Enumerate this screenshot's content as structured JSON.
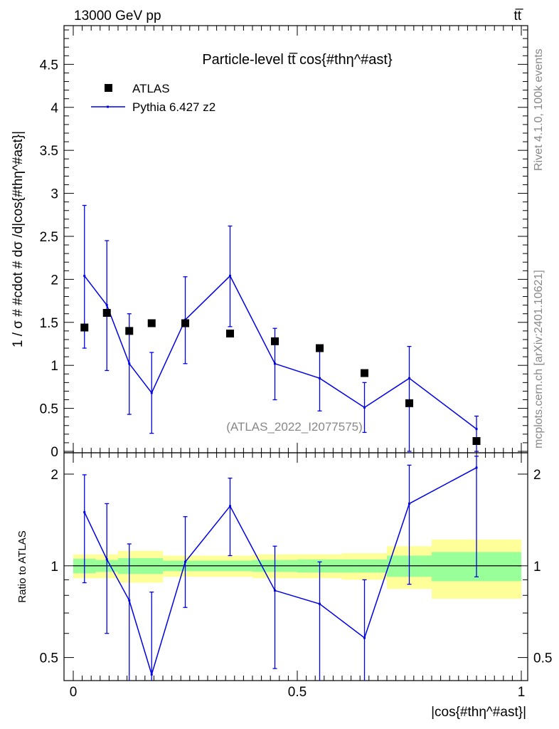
{
  "header": {
    "energy_label": "13000 GeV pp",
    "process_label": "tt̅",
    "title": "Particle-level tt̅ cos{#thη^#ast}",
    "analysis_id": "(ATLAS_2022_I2077575)",
    "rivet_label": "Rivet 4.1.0,  100k events",
    "source_label": "mcplots.cern.ch [arXiv:2401.10621]"
  },
  "legend": {
    "data_label": "ATLAS",
    "mc_label": "Pythia 6.427 z2"
  },
  "chart_data": [
    {
      "type": "scatter",
      "title": "Particle-level tt̅ cos{#thη^#ast}",
      "ylabel": "1 / σ # #cdot # dσ /d|cos{#thη^#ast}|",
      "xlabel": "",
      "xlim": [
        0,
        1
      ],
      "ylim": [
        0,
        4.95
      ],
      "yticks": [
        0,
        0.5,
        1,
        1.5,
        2,
        2.5,
        3,
        3.5,
        4,
        4.5
      ],
      "ytick_labels": [
        "0",
        "0.5",
        "1",
        "1.5",
        "2",
        "2.5",
        "3",
        "3.5",
        "4",
        "4.5"
      ],
      "bins": [
        0.0,
        0.05,
        0.1,
        0.15,
        0.2,
        0.3,
        0.4,
        0.5,
        0.6,
        0.7,
        0.8,
        1.0
      ],
      "series": [
        {
          "name": "ATLAS",
          "x": [
            0.025,
            0.075,
            0.125,
            0.175,
            0.25,
            0.35,
            0.45,
            0.55,
            0.65,
            0.75,
            0.9
          ],
          "values": [
            1.44,
            1.61,
            1.4,
            1.49,
            1.49,
            1.37,
            1.28,
            1.2,
            0.91,
            0.56,
            0.12
          ]
        },
        {
          "name": "Pythia 6.427 z2",
          "x": [
            0.025,
            0.075,
            0.125,
            0.175,
            0.25,
            0.35,
            0.45,
            0.55,
            0.65,
            0.75,
            0.9
          ],
          "values": [
            2.04,
            1.7,
            1.02,
            0.68,
            1.53,
            2.04,
            1.02,
            0.85,
            0.51,
            0.85,
            0.26
          ],
          "err_low": [
            0.84,
            0.76,
            0.59,
            0.47,
            0.51,
            0.59,
            0.42,
            0.38,
            0.29,
            0.85,
            0.26
          ],
          "err_high": [
            0.82,
            0.75,
            0.58,
            0.47,
            0.5,
            0.58,
            0.41,
            0.37,
            0.29,
            0.37,
            0.15
          ]
        }
      ]
    },
    {
      "type": "line",
      "title": "",
      "ylabel": "Ratio to ATLAS",
      "xlabel": "|cos{#thη^#ast}|",
      "xlim": [
        0,
        1
      ],
      "ylim": [
        0.42,
        2.35
      ],
      "scale": "log",
      "xticks": [
        0,
        0.5,
        1
      ],
      "xtick_labels": [
        "0",
        "0.5",
        "1"
      ],
      "yticks": [
        0.5,
        1,
        2
      ],
      "ytick_labels": [
        "0.5",
        "1",
        "2"
      ],
      "bins": [
        0.0,
        0.05,
        0.1,
        0.15,
        0.2,
        0.3,
        0.4,
        0.5,
        0.6,
        0.7,
        0.8,
        1.0
      ],
      "band_inner": [
        0.055,
        0.045,
        0.06,
        0.06,
        0.04,
        0.04,
        0.045,
        0.05,
        0.05,
        0.08,
        0.11
      ],
      "band_outer": [
        0.09,
        0.09,
        0.12,
        0.12,
        0.08,
        0.08,
        0.09,
        0.09,
        0.1,
        0.16,
        0.22
      ],
      "series": [
        {
          "name": "Pythia 6.427 z2 / ATLAS",
          "x": [
            0.025,
            0.075,
            0.125,
            0.175,
            0.25,
            0.35,
            0.45,
            0.55,
            0.65,
            0.75,
            0.9
          ],
          "values": [
            1.5,
            1.05,
            0.77,
            0.44,
            1.03,
            1.57,
            0.83,
            0.75,
            0.58,
            1.6,
            2.1
          ],
          "err_low": [
            0.62,
            0.45,
            0.42,
            0.31,
            0.3,
            0.49,
            0.37,
            0.35,
            0.24,
            0.73,
            1.18
          ],
          "err_high": [
            0.49,
            0.55,
            0.41,
            0.38,
            0.42,
            0.37,
            0.33,
            0.28,
            0.32,
            0.54,
            0.19
          ]
        }
      ]
    }
  ]
}
